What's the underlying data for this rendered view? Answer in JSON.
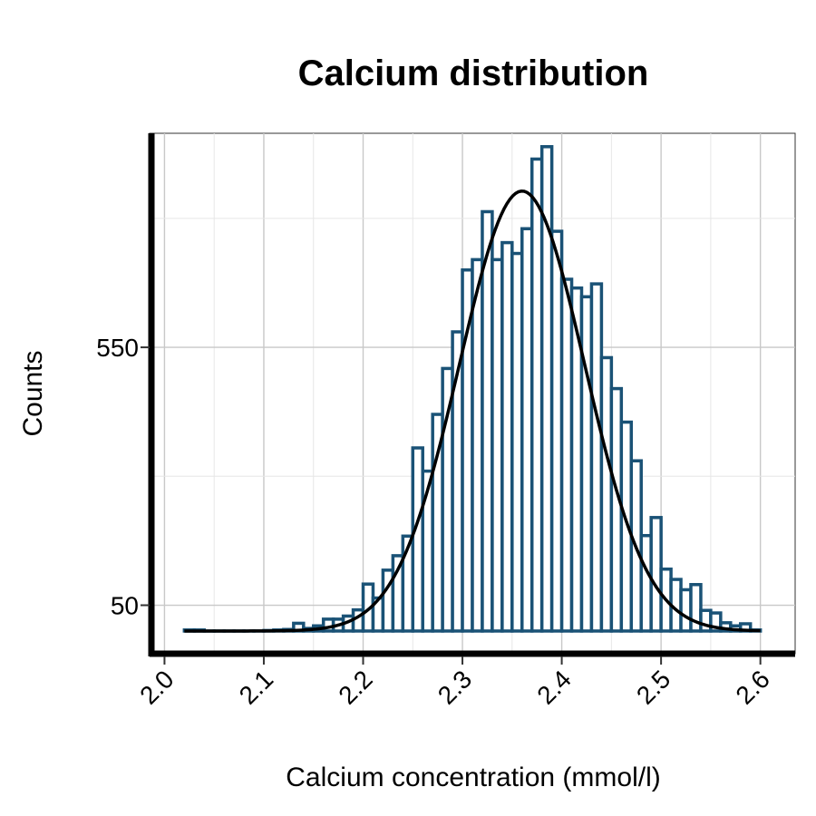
{
  "chart_data": {
    "type": "bar",
    "title": "Calcium distribution",
    "xlabel": "Calcium concentration (mmol/l)",
    "ylabel": "Counts",
    "x_ticks": [
      "2.0",
      "2.1",
      "2.2",
      "2.3",
      "2.4",
      "2.5",
      "2.6"
    ],
    "y_ticks": [
      "50",
      "550"
    ],
    "y_tick_values": [
      50,
      550
    ],
    "x_range": [
      1.985,
      2.635
    ],
    "y_range": [
      -44,
      965
    ],
    "grid": true,
    "bin_width": 0.01,
    "bin_starts": [
      2.02,
      2.03,
      2.04,
      2.05,
      2.06,
      2.07,
      2.08,
      2.09,
      2.1,
      2.11,
      2.12,
      2.13,
      2.14,
      2.15,
      2.16,
      2.17,
      2.18,
      2.19,
      2.2,
      2.21,
      2.22,
      2.23,
      2.24,
      2.25,
      2.26,
      2.27,
      2.28,
      2.29,
      2.3,
      2.31,
      2.32,
      2.33,
      2.34,
      2.35,
      2.36,
      2.37,
      2.38,
      2.39,
      2.4,
      2.41,
      2.42,
      2.43,
      2.44,
      2.45,
      2.46,
      2.47,
      2.48,
      2.49,
      2.5,
      2.51,
      2.52,
      2.53,
      2.54,
      2.55,
      2.56,
      2.57,
      2.58,
      2.59
    ],
    "counts": [
      2,
      2,
      0,
      0,
      0,
      0,
      0,
      0,
      1,
      2,
      3,
      15,
      5,
      10,
      23,
      23,
      29,
      41,
      91,
      64,
      118,
      146,
      184,
      355,
      310,
      420,
      509,
      580,
      700,
      720,
      813,
      720,
      753,
      732,
      780,
      915,
      939,
      775,
      682,
      665,
      648,
      673,
      530,
      470,
      405,
      330,
      185,
      220,
      120,
      100,
      80,
      90,
      40,
      35,
      16,
      10,
      14,
      2
    ],
    "fit_curve": {
      "type": "normal",
      "mean": 2.36,
      "sd": 0.063,
      "peak": 853
    },
    "colors": {
      "bar_outline": "#1a5276",
      "bar_fill": "#ffffff",
      "curve": "#000000",
      "grid": "#c8c8c8",
      "axis": "#000000"
    }
  }
}
